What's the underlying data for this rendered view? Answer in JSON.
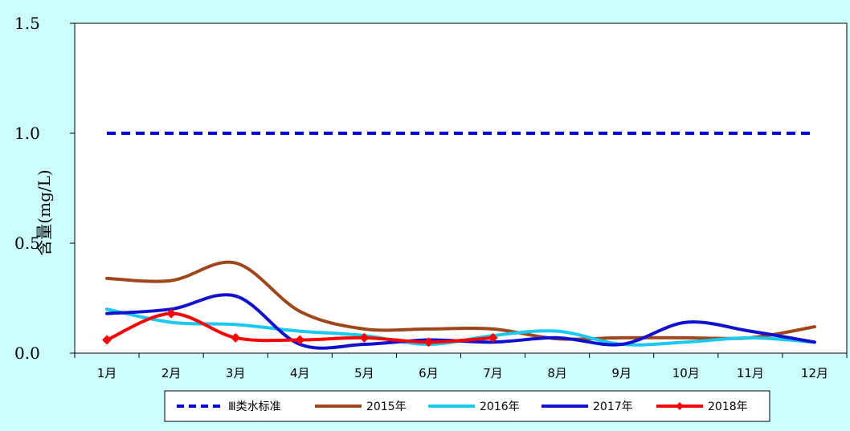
{
  "chart_data": {
    "type": "line",
    "ylabel": "含量(mg/L)",
    "ylim": [
      0,
      1.5
    ],
    "yticks": [
      "0.0",
      "0.5",
      "1.0",
      "1.5"
    ],
    "categories": [
      "1月",
      "2月",
      "3月",
      "4月",
      "5月",
      "6月",
      "7月",
      "8月",
      "9月",
      "10月",
      "11月",
      "12月"
    ],
    "legend_position": "bottom",
    "series": [
      {
        "name": "Ⅲ类水标准",
        "color": "#0000dd",
        "dashed": true,
        "markers": false,
        "values": [
          1.0,
          1.0,
          1.0,
          1.0,
          1.0,
          1.0,
          1.0,
          1.0,
          1.0,
          1.0,
          1.0,
          1.0
        ]
      },
      {
        "name": "2015年",
        "color": "#a0461a",
        "dashed": false,
        "markers": false,
        "values": [
          0.34,
          0.33,
          0.41,
          0.19,
          0.11,
          0.11,
          0.11,
          0.065,
          0.07,
          0.07,
          0.07,
          0.12
        ]
      },
      {
        "name": "2016年",
        "color": "#1ac8f0",
        "dashed": false,
        "markers": false,
        "values": [
          0.2,
          0.14,
          0.13,
          0.1,
          0.08,
          0.04,
          0.08,
          0.1,
          0.04,
          0.05,
          0.07,
          0.05
        ]
      },
      {
        "name": "2017年",
        "color": "#1010d0",
        "dashed": false,
        "markers": false,
        "values": [
          0.18,
          0.2,
          0.26,
          0.04,
          0.04,
          0.06,
          0.05,
          0.07,
          0.04,
          0.14,
          0.1,
          0.05
        ]
      },
      {
        "name": "2018年",
        "color": "#ff0000",
        "dashed": false,
        "markers": true,
        "values": [
          0.06,
          0.18,
          0.07,
          0.06,
          0.07,
          0.05,
          0.07,
          null,
          null,
          null,
          null,
          null
        ]
      }
    ]
  }
}
